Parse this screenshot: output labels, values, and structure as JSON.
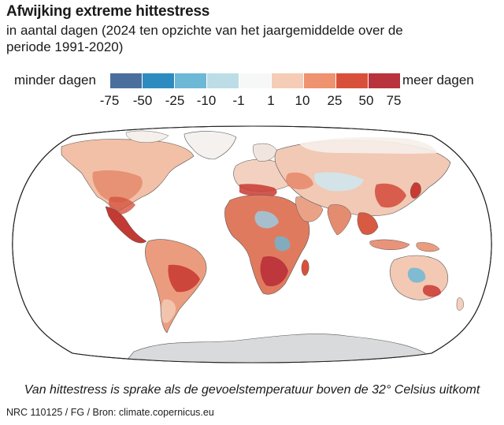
{
  "header": {
    "title": "Afwijking extreme hittestress",
    "subtitle": "in aantal dagen (2024 ten opzichte van het jaargemiddelde over de periode 1991-2020)"
  },
  "legend": {
    "left_label": "minder dagen",
    "right_label": "meer dagen",
    "ticks": [
      "-75",
      "-50",
      "-25",
      "-10",
      "-1",
      "1",
      "10",
      "25",
      "50",
      "75"
    ],
    "colors": [
      "#4a6f9c",
      "#2e8bc0",
      "#6cb8d6",
      "#bcdde6",
      "#f6f7f7",
      "#f5cdb6",
      "#ee9270",
      "#d8503a",
      "#b8333c"
    ]
  },
  "map": {
    "projection": "Robinson",
    "ocean_color": "#ffffff",
    "antarctica_color": "#d9dadb",
    "no_data_color": "#f2f2f2"
  },
  "footer": {
    "note": "Van hittestress is sprake als de gevoelstemperatuur boven de 32° Celsius uitkomt",
    "credit": "NRC 110125 / FG / Bron: climate.copernicus.eu"
  }
}
